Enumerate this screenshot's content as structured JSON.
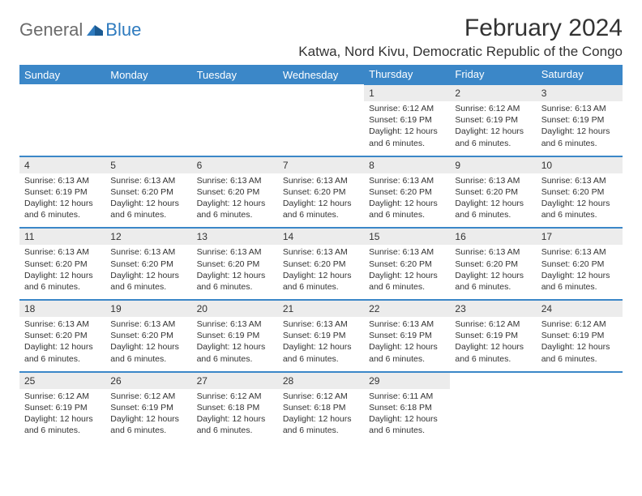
{
  "logo": {
    "general": "General",
    "blue": "Blue"
  },
  "title": "February 2024",
  "location": "Katwa, Nord Kivu, Democratic Republic of the Congo",
  "colors": {
    "header_bg": "#3b87c8",
    "header_text": "#ffffff",
    "daynum_bg": "#ececec",
    "border": "#3b87c8",
    "text": "#333333",
    "logo_gray": "#6b6b6b",
    "logo_blue": "#2f7bbf",
    "background": "#ffffff"
  },
  "fonts": {
    "title_size": 30,
    "location_size": 17,
    "weekday_size": 13,
    "daynum_size": 12,
    "content_size": 10.5
  },
  "weekdays": [
    "Sunday",
    "Monday",
    "Tuesday",
    "Wednesday",
    "Thursday",
    "Friday",
    "Saturday"
  ],
  "weeks": [
    [
      null,
      null,
      null,
      null,
      {
        "n": "1",
        "sr": "Sunrise: 6:12 AM",
        "ss": "Sunset: 6:19 PM",
        "d1": "Daylight: 12 hours",
        "d2": "and 6 minutes."
      },
      {
        "n": "2",
        "sr": "Sunrise: 6:12 AM",
        "ss": "Sunset: 6:19 PM",
        "d1": "Daylight: 12 hours",
        "d2": "and 6 minutes."
      },
      {
        "n": "3",
        "sr": "Sunrise: 6:13 AM",
        "ss": "Sunset: 6:19 PM",
        "d1": "Daylight: 12 hours",
        "d2": "and 6 minutes."
      }
    ],
    [
      {
        "n": "4",
        "sr": "Sunrise: 6:13 AM",
        "ss": "Sunset: 6:19 PM",
        "d1": "Daylight: 12 hours",
        "d2": "and 6 minutes."
      },
      {
        "n": "5",
        "sr": "Sunrise: 6:13 AM",
        "ss": "Sunset: 6:20 PM",
        "d1": "Daylight: 12 hours",
        "d2": "and 6 minutes."
      },
      {
        "n": "6",
        "sr": "Sunrise: 6:13 AM",
        "ss": "Sunset: 6:20 PM",
        "d1": "Daylight: 12 hours",
        "d2": "and 6 minutes."
      },
      {
        "n": "7",
        "sr": "Sunrise: 6:13 AM",
        "ss": "Sunset: 6:20 PM",
        "d1": "Daylight: 12 hours",
        "d2": "and 6 minutes."
      },
      {
        "n": "8",
        "sr": "Sunrise: 6:13 AM",
        "ss": "Sunset: 6:20 PM",
        "d1": "Daylight: 12 hours",
        "d2": "and 6 minutes."
      },
      {
        "n": "9",
        "sr": "Sunrise: 6:13 AM",
        "ss": "Sunset: 6:20 PM",
        "d1": "Daylight: 12 hours",
        "d2": "and 6 minutes."
      },
      {
        "n": "10",
        "sr": "Sunrise: 6:13 AM",
        "ss": "Sunset: 6:20 PM",
        "d1": "Daylight: 12 hours",
        "d2": "and 6 minutes."
      }
    ],
    [
      {
        "n": "11",
        "sr": "Sunrise: 6:13 AM",
        "ss": "Sunset: 6:20 PM",
        "d1": "Daylight: 12 hours",
        "d2": "and 6 minutes."
      },
      {
        "n": "12",
        "sr": "Sunrise: 6:13 AM",
        "ss": "Sunset: 6:20 PM",
        "d1": "Daylight: 12 hours",
        "d2": "and 6 minutes."
      },
      {
        "n": "13",
        "sr": "Sunrise: 6:13 AM",
        "ss": "Sunset: 6:20 PM",
        "d1": "Daylight: 12 hours",
        "d2": "and 6 minutes."
      },
      {
        "n": "14",
        "sr": "Sunrise: 6:13 AM",
        "ss": "Sunset: 6:20 PM",
        "d1": "Daylight: 12 hours",
        "d2": "and 6 minutes."
      },
      {
        "n": "15",
        "sr": "Sunrise: 6:13 AM",
        "ss": "Sunset: 6:20 PM",
        "d1": "Daylight: 12 hours",
        "d2": "and 6 minutes."
      },
      {
        "n": "16",
        "sr": "Sunrise: 6:13 AM",
        "ss": "Sunset: 6:20 PM",
        "d1": "Daylight: 12 hours",
        "d2": "and 6 minutes."
      },
      {
        "n": "17",
        "sr": "Sunrise: 6:13 AM",
        "ss": "Sunset: 6:20 PM",
        "d1": "Daylight: 12 hours",
        "d2": "and 6 minutes."
      }
    ],
    [
      {
        "n": "18",
        "sr": "Sunrise: 6:13 AM",
        "ss": "Sunset: 6:20 PM",
        "d1": "Daylight: 12 hours",
        "d2": "and 6 minutes."
      },
      {
        "n": "19",
        "sr": "Sunrise: 6:13 AM",
        "ss": "Sunset: 6:20 PM",
        "d1": "Daylight: 12 hours",
        "d2": "and 6 minutes."
      },
      {
        "n": "20",
        "sr": "Sunrise: 6:13 AM",
        "ss": "Sunset: 6:19 PM",
        "d1": "Daylight: 12 hours",
        "d2": "and 6 minutes."
      },
      {
        "n": "21",
        "sr": "Sunrise: 6:13 AM",
        "ss": "Sunset: 6:19 PM",
        "d1": "Daylight: 12 hours",
        "d2": "and 6 minutes."
      },
      {
        "n": "22",
        "sr": "Sunrise: 6:13 AM",
        "ss": "Sunset: 6:19 PM",
        "d1": "Daylight: 12 hours",
        "d2": "and 6 minutes."
      },
      {
        "n": "23",
        "sr": "Sunrise: 6:12 AM",
        "ss": "Sunset: 6:19 PM",
        "d1": "Daylight: 12 hours",
        "d2": "and 6 minutes."
      },
      {
        "n": "24",
        "sr": "Sunrise: 6:12 AM",
        "ss": "Sunset: 6:19 PM",
        "d1": "Daylight: 12 hours",
        "d2": "and 6 minutes."
      }
    ],
    [
      {
        "n": "25",
        "sr": "Sunrise: 6:12 AM",
        "ss": "Sunset: 6:19 PM",
        "d1": "Daylight: 12 hours",
        "d2": "and 6 minutes."
      },
      {
        "n": "26",
        "sr": "Sunrise: 6:12 AM",
        "ss": "Sunset: 6:19 PM",
        "d1": "Daylight: 12 hours",
        "d2": "and 6 minutes."
      },
      {
        "n": "27",
        "sr": "Sunrise: 6:12 AM",
        "ss": "Sunset: 6:18 PM",
        "d1": "Daylight: 12 hours",
        "d2": "and 6 minutes."
      },
      {
        "n": "28",
        "sr": "Sunrise: 6:12 AM",
        "ss": "Sunset: 6:18 PM",
        "d1": "Daylight: 12 hours",
        "d2": "and 6 minutes."
      },
      {
        "n": "29",
        "sr": "Sunrise: 6:11 AM",
        "ss": "Sunset: 6:18 PM",
        "d1": "Daylight: 12 hours",
        "d2": "and 6 minutes."
      },
      null,
      null
    ]
  ]
}
